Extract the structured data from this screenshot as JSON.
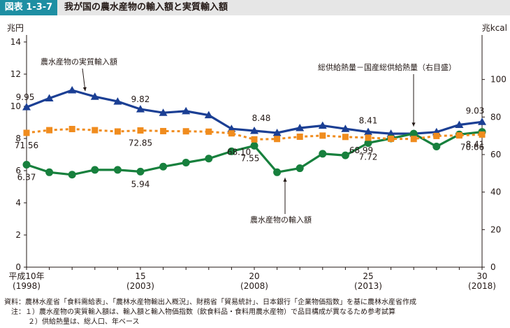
{
  "header": {
    "figure_label": "図表 1-3-7",
    "title": "我が国の農水産物の輸入額と実質輸入額"
  },
  "chart_data": {
    "type": "line",
    "left_axis": {
      "unit": "兆円",
      "ylim": [
        0,
        14
      ],
      "ticks": [
        0,
        2,
        4,
        6,
        8,
        10,
        12,
        14
      ]
    },
    "right_axis": {
      "unit": "兆kcal",
      "ylim": [
        0,
        120
      ],
      "ticks": [
        0,
        20,
        40,
        60,
        80,
        100
      ]
    },
    "x": [
      1998,
      1999,
      2000,
      2001,
      2002,
      2003,
      2004,
      2005,
      2006,
      2007,
      2008,
      2009,
      2010,
      2011,
      2012,
      2013,
      2014,
      2015,
      2016,
      2017,
      2018
    ],
    "x_ticks": [
      {
        "x": 1998,
        "label1": "平成10年",
        "label2": "(1998)"
      },
      {
        "x": 2003,
        "label1": "15",
        "label2": "(2003)"
      },
      {
        "x": 2008,
        "label1": "20",
        "label2": "(2008)"
      },
      {
        "x": 2013,
        "label1": "25",
        "label2": "(2013)"
      },
      {
        "x": 2018,
        "label1": "30",
        "label2": "(2018)"
      }
    ],
    "series": [
      {
        "name": "農水産物の実質輸入額",
        "axis": "left",
        "color": "#1b3f94",
        "marker": "triangle",
        "values": [
          9.95,
          10.5,
          11.0,
          10.6,
          10.3,
          9.82,
          9.6,
          9.7,
          9.45,
          8.6,
          8.48,
          8.35,
          8.65,
          8.8,
          8.6,
          8.41,
          8.3,
          8.3,
          8.4,
          8.85,
          9.03
        ]
      },
      {
        "name": "農水産物の輸入額",
        "axis": "left",
        "color": "#17803d",
        "marker": "circle",
        "values": [
          6.37,
          5.9,
          5.75,
          6.05,
          6.05,
          5.94,
          6.25,
          6.5,
          6.75,
          7.2,
          7.55,
          5.9,
          6.15,
          7.05,
          6.95,
          7.72,
          8.0,
          8.3,
          7.5,
          8.25,
          8.41
        ]
      },
      {
        "name": "総供給熱量－国産総供給熱量（右目盛）",
        "axis": "right",
        "color": "#f08c1e",
        "marker": "square",
        "values": [
          71.56,
          73.0,
          73.6,
          73.0,
          72.3,
          72.85,
          72.5,
          72.4,
          72.2,
          71.3,
          68.1,
          68.3,
          69.5,
          70.1,
          69.4,
          68.99,
          68.4,
          68.3,
          69.9,
          70.2,
          70.66
        ]
      }
    ],
    "data_labels": [
      {
        "series": 0,
        "index": 0,
        "text": "9.95"
      },
      {
        "series": 0,
        "index": 5,
        "text": "9.82"
      },
      {
        "series": 0,
        "index": 10,
        "text": "8.48"
      },
      {
        "series": 0,
        "index": 15,
        "text": "8.41"
      },
      {
        "series": 0,
        "index": 20,
        "text": "9.03"
      },
      {
        "series": 1,
        "index": 0,
        "text": "6.37"
      },
      {
        "series": 1,
        "index": 5,
        "text": "5.94"
      },
      {
        "series": 1,
        "index": 10,
        "text": "7.55"
      },
      {
        "series": 1,
        "index": 15,
        "text": "7.72"
      },
      {
        "series": 1,
        "index": 20,
        "text": "8.41"
      },
      {
        "series": 2,
        "index": 0,
        "text": "71.56"
      },
      {
        "series": 2,
        "index": 5,
        "text": "72.85"
      },
      {
        "series": 2,
        "index": 10,
        "text": "68.10"
      },
      {
        "series": 2,
        "index": 15,
        "text": "68.99"
      },
      {
        "series": 2,
        "index": 20,
        "text": "70.66"
      }
    ]
  },
  "notes": {
    "source": "資料：農林水産省「食料需給表」、「農林水産物輸出入概況」、財務省「貿易統計」、日本銀行「企業物価指数」を基に農林水産省作成",
    "note1": "注：１）農水産物の実質輸入額は、輸入額と輸入物価指数（飲食料品・食料用農水産物）で品目構成が異なるため参考試算",
    "note2": "２）供給熱量は、総人口、年ベース"
  }
}
